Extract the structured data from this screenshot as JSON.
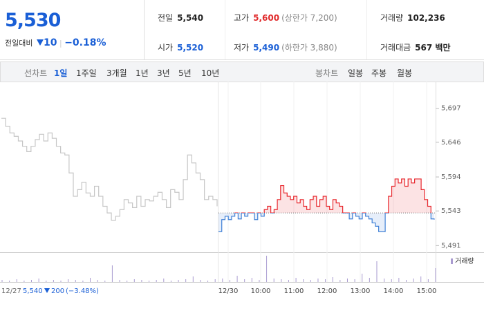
{
  "header": {
    "price": "5,530",
    "change_label": "전일대비",
    "change": "10",
    "change_pct": "−0.18%",
    "stats": [
      {
        "label": "전일",
        "value": "5,540"
      },
      {
        "label": "고가",
        "value": "5,600",
        "note": "(상한가 7,200)"
      },
      {
        "label": "거래량",
        "value": "102,236"
      },
      {
        "label": "시가",
        "value": "5,520"
      },
      {
        "label": "저가",
        "value": "5,490",
        "note": "(하한가 3,880)"
      },
      {
        "label": "거래대금",
        "value": "567 백만"
      }
    ]
  },
  "tabs": {
    "line_label": "선차트",
    "line_periods": [
      "1일",
      "1주일",
      "3개월",
      "1년",
      "3년",
      "5년",
      "10년"
    ],
    "candle_label": "봉차트",
    "candle_periods": [
      "일봉",
      "주봉",
      "월봉"
    ]
  },
  "chart_data": {
    "type": "line",
    "series": [
      {
        "color": "#c6c6c6",
        "values": [
          5682,
          5670,
          5660,
          5655,
          5648,
          5640,
          5632,
          5640,
          5650,
          5658,
          5648,
          5660,
          5652,
          5640,
          5630,
          5627,
          5600,
          5565,
          5575,
          5586,
          5570,
          5565,
          5580,
          5565,
          5550,
          5540,
          5529,
          5535,
          5545,
          5560,
          5555,
          5548,
          5565,
          5550,
          5560,
          5558,
          5565,
          5571,
          5560,
          5548,
          5575,
          5571,
          5560,
          5590,
          5627,
          5615,
          5600,
          5590,
          5560,
          5565,
          5560,
          5550
        ]
      },
      {
        "color": "#e8262c",
        "color_below": "#3d7fd6",
        "values": [
          5512,
          5530,
          5535,
          5530,
          5535,
          5540,
          5531,
          5540,
          5535,
          5540,
          5540,
          5530,
          5540,
          5535,
          5545,
          5550,
          5540,
          5545,
          5560,
          5581,
          5570,
          5565,
          5560,
          5565,
          5555,
          5560,
          5550,
          5545,
          5560,
          5565,
          5550,
          5560,
          5565,
          5550,
          5545,
          5560,
          5555,
          5550,
          5540,
          5540,
          5531,
          5540,
          5535,
          5531,
          5540,
          5535,
          5531,
          5525,
          5520,
          5512,
          5512,
          5540,
          5565,
          5580,
          5591,
          5585,
          5591,
          5580,
          5591,
          5585,
          5591,
          5591,
          5575,
          5560,
          5550,
          5531,
          5530
        ]
      }
    ],
    "baseline": 5540,
    "ylim": [
      5481,
      5733
    ],
    "yticks": [
      {
        "value": 5697,
        "label": "5,697"
      },
      {
        "value": 5646,
        "label": "5,646"
      },
      {
        "value": 5594,
        "label": "5,594"
      },
      {
        "value": 5543,
        "label": "5,543"
      },
      {
        "value": 5491,
        "label": "5,491"
      }
    ],
    "x_labels": [
      "12/30",
      "10:00",
      "11:00",
      "12:00",
      "13:00",
      "14:00",
      "15:00"
    ],
    "volume": {
      "name": "거래량",
      "color": "#a99bd0",
      "values": [
        3,
        2,
        4,
        2,
        3,
        5,
        2,
        3,
        2,
        4,
        3,
        2,
        6,
        3,
        2,
        24,
        3,
        2,
        4,
        3,
        2,
        3,
        5,
        2,
        3,
        4,
        8,
        3,
        2,
        4,
        5,
        3,
        9,
        4,
        6,
        3,
        38,
        5,
        4,
        3,
        6,
        4,
        3,
        5,
        4,
        7,
        3,
        5,
        4,
        12,
        6,
        30,
        5,
        4,
        6,
        3,
        5,
        8,
        4,
        20
      ]
    }
  },
  "footer": {
    "date": "12/27",
    "price": "5,540",
    "change": "200",
    "change_pct": "(−3.48%)"
  }
}
